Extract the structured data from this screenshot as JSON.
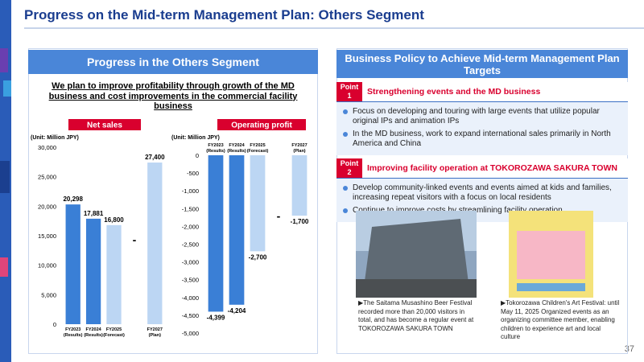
{
  "title": "Progress on the Mid-term Management Plan: Others Segment",
  "page_number": "37",
  "left": {
    "heading": "Progress in the Others Segment",
    "summary": "We plan to improve profitability through growth of the MD business and cost improvements in the commercial facility business"
  },
  "chart_data": [
    {
      "type": "bar",
      "title": "Net sales",
      "unit": "(Unit: Million JPY)",
      "categories": [
        "FY2023",
        "FY2024",
        "FY2025",
        null,
        "FY2027"
      ],
      "category_notes": [
        "(Results)",
        "(Results)",
        "(Forecast)",
        null,
        "(Plan)"
      ],
      "values": [
        20298,
        17881,
        16800,
        null,
        27400
      ],
      "value_labels": [
        "20,298",
        "17,881",
        "16,800",
        "-",
        "27,400"
      ],
      "colors": [
        "#3a7fd6",
        "#3a7fd6",
        "#bcd6f3",
        null,
        "#bcd6f3"
      ],
      "ylim": [
        0,
        30000
      ],
      "yticks": [
        0,
        {
          "value": 5000,
          "label": "5,000"
        },
        {
          "value": 10000,
          "label": "10,000"
        },
        {
          "value": 15000,
          "label": "15,000"
        },
        {
          "value": 20000,
          "label": "20,000"
        },
        {
          "value": 25000,
          "label": "25,000"
        },
        {
          "value": 30000,
          "label": "30,000"
        }
      ]
    },
    {
      "type": "bar",
      "title": "Operating profit",
      "unit": "(Unit: Million JPY)",
      "categories": [
        "FY2023",
        "FY2024",
        "FY2025",
        null,
        "FY2027"
      ],
      "category_notes": [
        "(Results)",
        "(Results)",
        "(Forecast)",
        null,
        "(Plan)"
      ],
      "values": [
        -4399,
        -4204,
        -2700,
        null,
        -1700
      ],
      "value_labels": [
        "-4,399",
        "-4,204",
        "-2,700",
        "-",
        "-1,700"
      ],
      "colors": [
        "#3a7fd6",
        "#3a7fd6",
        "#bcd6f3",
        null,
        "#bcd6f3"
      ],
      "ylim": [
        -5000,
        0
      ],
      "yticks": [
        0,
        -500,
        {
          "value": -1000,
          "label": "-1,000"
        },
        {
          "value": -1500,
          "label": "-1,500"
        },
        {
          "value": -2000,
          "label": "-2,000"
        },
        {
          "value": -2500,
          "label": "-2,500"
        },
        {
          "value": -3000,
          "label": "-3,000"
        },
        {
          "value": -3500,
          "label": "-3,500"
        },
        {
          "value": -4000,
          "label": "-4,000"
        },
        {
          "value": -4500,
          "label": "-4,500"
        },
        {
          "value": -5000,
          "label": "-5,000"
        }
      ]
    }
  ],
  "right": {
    "heading": "Business Policy to Achieve Mid-term Management Plan Targets",
    "points": [
      {
        "badge": "Point",
        "number": "1",
        "title": "Strengthening events and the MD business",
        "items": [
          "Focus on developing and touring with large events that utilize popular original IPs and animation IPs",
          "In the MD business, work to expand international sales primarily in North America and China"
        ]
      },
      {
        "badge": "Point",
        "number": "2",
        "title": "Improving facility operation at TOKOROZAWA SAKURA TOWN",
        "items": [
          "Develop community-linked events and events aimed at kids and families, increasing repeat visitors with a focus on local residents",
          "Continue to improve costs by streamlining facility operation"
        ]
      }
    ],
    "photos": [
      {
        "caption": "▶The Saitama Musashino Beer Festival recorded more than 20,000 visitors in total, and has become a regular event at TOKOROZAWA SAKURA TOWN"
      },
      {
        "caption": "▶Tokorozawa Children's Art Festival: until May 11, 2025 Organized events as an organizing committee member, enabling children to experience art and local culture"
      }
    ]
  }
}
